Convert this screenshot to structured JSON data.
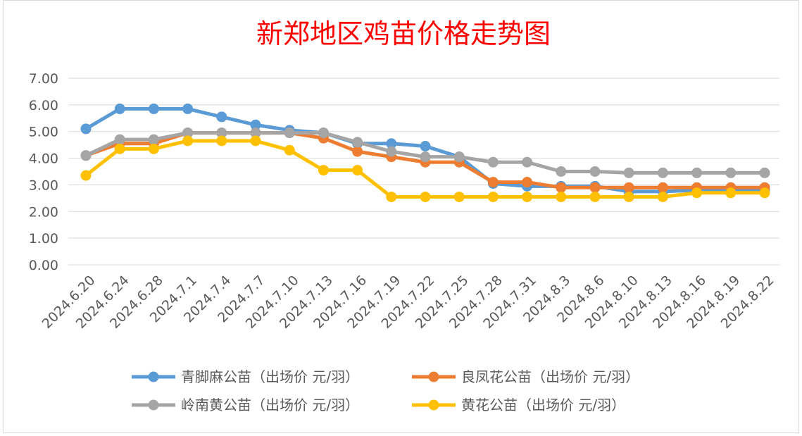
{
  "chart_data": {
    "type": "line",
    "title": "新郑地区鸡苗价格走势图",
    "categories": [
      "2024.6.20",
      "2024.6.24",
      "2024.6.28",
      "2024.7.1",
      "2024.7.4",
      "2024.7.7",
      "2024.7.10",
      "2024.7.13",
      "2024.7.16",
      "2024.7.19",
      "2024.7.22",
      "2024.7.25",
      "2024.7.28",
      "2024.7.31",
      "2024.8.3",
      "2024.8.6",
      "2024.8.10",
      "2024.8.13",
      "2024.8.16",
      "2024.8.19",
      "2024.8.22"
    ],
    "y_ticks": [
      "0.00",
      "1.00",
      "2.00",
      "3.00",
      "4.00",
      "5.00",
      "6.00",
      "7.00"
    ],
    "ylim": [
      0,
      7
    ],
    "grid": true,
    "legend_position": "bottom",
    "series": [
      {
        "name": "青脚麻公苗（出场价 元/羽）",
        "color": "#5b9bd5",
        "values": [
          5.1,
          5.85,
          5.85,
          5.85,
          5.55,
          5.25,
          5.05,
          4.95,
          4.55,
          4.55,
          4.45,
          4.05,
          3.05,
          2.95,
          2.95,
          2.95,
          2.75,
          2.75,
          2.8,
          2.8,
          2.8
        ]
      },
      {
        "name": "良凤花公苗（出场价 元/羽）",
        "color": "#ed7d31",
        "values": [
          4.1,
          4.55,
          4.55,
          4.95,
          4.95,
          4.95,
          4.95,
          4.75,
          4.25,
          4.05,
          3.85,
          3.85,
          3.1,
          3.1,
          2.9,
          2.9,
          2.9,
          2.9,
          2.9,
          2.9,
          2.9
        ]
      },
      {
        "name": "岭南黄公苗（出场价 元/羽）",
        "color": "#a5a5a5",
        "values": [
          4.1,
          4.7,
          4.7,
          4.95,
          4.95,
          4.95,
          4.95,
          4.95,
          4.6,
          4.25,
          4.05,
          4.05,
          3.85,
          3.85,
          3.5,
          3.5,
          3.45,
          3.45,
          3.45,
          3.45,
          3.45
        ]
      },
      {
        "name": "黄花公苗（出场价 元/羽）",
        "color": "#ffc000",
        "values": [
          3.35,
          4.35,
          4.35,
          4.65,
          4.65,
          4.65,
          4.3,
          3.55,
          3.55,
          2.55,
          2.55,
          2.55,
          2.55,
          2.55,
          2.55,
          2.55,
          2.55,
          2.55,
          2.7,
          2.7,
          2.7
        ]
      }
    ]
  }
}
